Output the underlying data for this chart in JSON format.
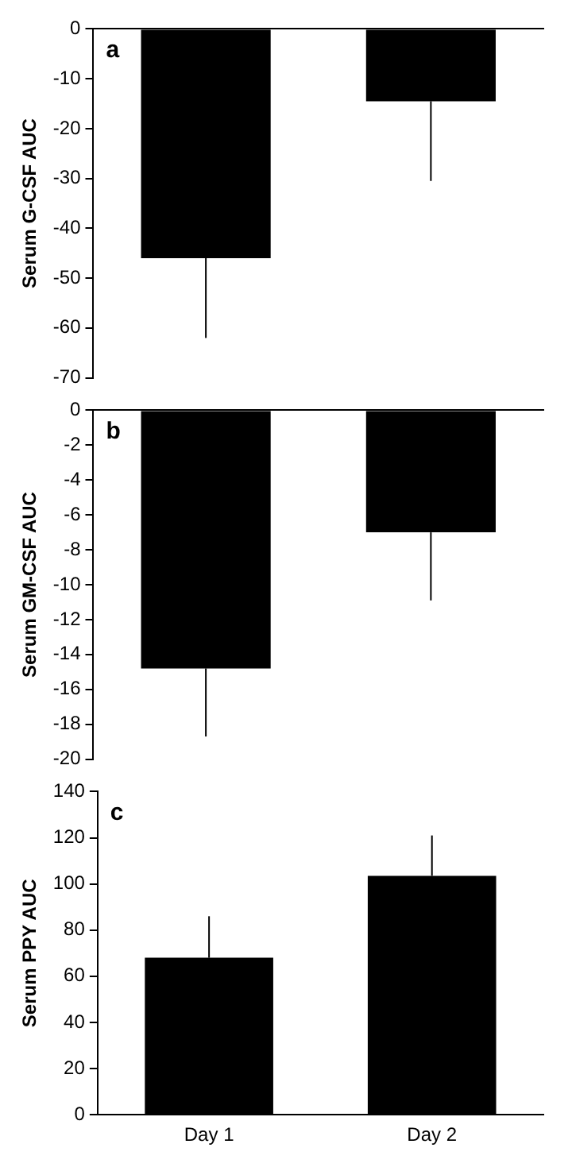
{
  "chart_data": [
    {
      "type": "bar",
      "ylabel": "Serum G-CSF AUC",
      "annotations": [
        "a"
      ],
      "categories": [
        null,
        null
      ],
      "values": [
        -46,
        -14.5
      ],
      "color": "#000000",
      "errors": [
        [
          -62,
          -46
        ],
        [
          -30.5,
          -14.5
        ]
      ],
      "ylim": [
        -70,
        0
      ],
      "yticks": [
        -70,
        -60,
        -50,
        -40,
        -30,
        -20,
        -10,
        0
      ],
      "grid": false,
      "legend": false,
      "tick_labels": "y"
    },
    {
      "type": "bar",
      "ylabel": "Serum GM-CSF AUC",
      "annotations": [
        "b"
      ],
      "categories": [
        null,
        null
      ],
      "values": [
        -14.8,
        -7
      ],
      "color": "#000000",
      "errors": [
        [
          -18.7,
          -14.8
        ],
        [
          -10.9,
          -7
        ]
      ],
      "ylim": [
        -20,
        0
      ],
      "yticks": [
        -20,
        -18,
        -16,
        -14,
        -12,
        -10,
        -8,
        -6,
        -4,
        -2,
        0
      ],
      "grid": false,
      "legend": false,
      "tick_labels": "y"
    },
    {
      "type": "bar",
      "ylabel": "Serum PPY AUC",
      "annotations": [
        "c"
      ],
      "categories": [
        "Day 1",
        "Day 2"
      ],
      "values": [
        68,
        103.5
      ],
      "color": "#000000",
      "errors": [
        [
          68,
          86
        ],
        [
          103.5,
          121
        ]
      ],
      "ylim": [
        0,
        140
      ],
      "yticks": [
        0,
        20,
        40,
        60,
        80,
        100,
        120,
        140
      ],
      "grid": false,
      "legend": false
    }
  ]
}
